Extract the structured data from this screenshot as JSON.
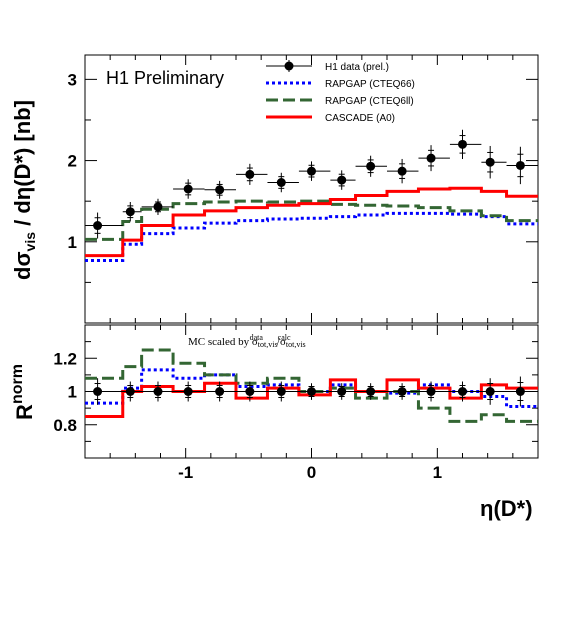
{
  "chart_data": [
    {
      "type": "line",
      "panel": "top",
      "annotation": "H1 Preliminary",
      "ylabel": "dσvis / dη(D*) [nb]",
      "xlim": [
        -1.8,
        1.8
      ],
      "ylim": [
        0,
        3.3
      ],
      "yticks": [
        1,
        2,
        3
      ],
      "bin_edges": [
        -1.8,
        -1.5,
        -1.35,
        -1.1,
        -0.85,
        -0.6,
        -0.35,
        -0.1,
        0.15,
        0.35,
        0.6,
        0.85,
        1.1,
        1.35,
        1.55,
        1.8
      ],
      "data": {
        "name": "H1 data (prel.)",
        "x": [
          -1.7,
          -1.44,
          -1.22,
          -0.98,
          -0.73,
          -0.49,
          -0.24,
          0.0,
          0.24,
          0.47,
          0.72,
          0.95,
          1.2,
          1.42,
          1.66
        ],
        "y": [
          1.2,
          1.37,
          1.43,
          1.65,
          1.64,
          1.83,
          1.73,
          1.87,
          1.76,
          1.93,
          1.87,
          2.03,
          2.2,
          1.98,
          1.94
        ],
        "err": [
          0.16,
          0.12,
          0.1,
          0.12,
          0.11,
          0.13,
          0.12,
          0.12,
          0.12,
          0.13,
          0.15,
          0.16,
          0.18,
          0.2,
          0.23
        ]
      },
      "series": [
        {
          "name": "RAPGAP (CTEQ66)",
          "color": "#0000ff",
          "style": "dotted",
          "values": [
            0.77,
            0.97,
            1.1,
            1.17,
            1.23,
            1.26,
            1.28,
            1.29,
            1.31,
            1.33,
            1.35,
            1.35,
            1.34,
            1.31,
            1.22
          ]
        },
        {
          "name": "RAPGAP (CTEQ6ll)",
          "color": "#336633",
          "style": "dashed",
          "values": [
            1.03,
            1.25,
            1.4,
            1.47,
            1.49,
            1.5,
            1.49,
            1.5,
            1.46,
            1.45,
            1.44,
            1.42,
            1.38,
            1.32,
            1.26
          ]
        },
        {
          "name": "CASCADE (A0)",
          "color": "#ff0000",
          "style": "solid",
          "values": [
            0.83,
            1.02,
            1.2,
            1.33,
            1.38,
            1.42,
            1.45,
            1.47,
            1.52,
            1.57,
            1.62,
            1.65,
            1.66,
            1.62,
            1.56
          ]
        }
      ]
    },
    {
      "type": "line",
      "panel": "bottom",
      "ylabel": "R norm",
      "xlabel": "η(D*)",
      "mc_note": "MC scaled by σtot,vis^data / σtot,vis^calc",
      "xlim": [
        -1.8,
        1.8
      ],
      "ylim": [
        0.6,
        1.4
      ],
      "yticks": [
        0.8,
        1,
        1.2
      ],
      "xticks": [
        -1,
        0,
        1
      ],
      "bin_edges": [
        -1.8,
        -1.5,
        -1.35,
        -1.1,
        -0.85,
        -0.6,
        -0.35,
        -0.1,
        0.15,
        0.35,
        0.6,
        0.85,
        1.1,
        1.35,
        1.55,
        1.8
      ],
      "data": {
        "name": "H1 data (prel.)",
        "x": [
          -1.7,
          -1.44,
          -1.22,
          -0.98,
          -0.73,
          -0.49,
          -0.24,
          0.0,
          0.24,
          0.47,
          0.72,
          0.95,
          1.2,
          1.42,
          1.66
        ],
        "y": [
          1.0,
          1.0,
          1.0,
          1.0,
          1.0,
          1.0,
          1.0,
          1.0,
          1.0,
          1.0,
          1.0,
          1.0,
          1.0,
          1.0,
          1.0
        ],
        "err": [
          0.08,
          0.06,
          0.06,
          0.06,
          0.06,
          0.06,
          0.06,
          0.05,
          0.05,
          0.05,
          0.05,
          0.06,
          0.06,
          0.08,
          0.09
        ]
      },
      "series": [
        {
          "name": "RAPGAP (CTEQ66)",
          "color": "#0000ff",
          "style": "dotted",
          "values": [
            0.93,
            1.02,
            1.13,
            1.08,
            1.1,
            1.03,
            1.04,
            1.0,
            1.04,
            1.0,
            0.99,
            1.04,
            1.0,
            0.97,
            0.91
          ]
        },
        {
          "name": "RAPGAP (CTEQ6ll)",
          "color": "#336633",
          "style": "dashed",
          "values": [
            1.08,
            1.15,
            1.25,
            1.17,
            1.1,
            1.05,
            1.08,
            1.0,
            1.02,
            0.96,
            1.0,
            0.9,
            0.82,
            0.86,
            0.82
          ]
        },
        {
          "name": "CASCADE (A0)",
          "color": "#ff0000",
          "style": "solid",
          "values": [
            0.85,
            1.0,
            1.03,
            1.0,
            1.05,
            0.96,
            1.02,
            0.98,
            1.07,
            1.0,
            1.07,
            1.02,
            0.96,
            1.04,
            1.02
          ]
        }
      ]
    }
  ]
}
